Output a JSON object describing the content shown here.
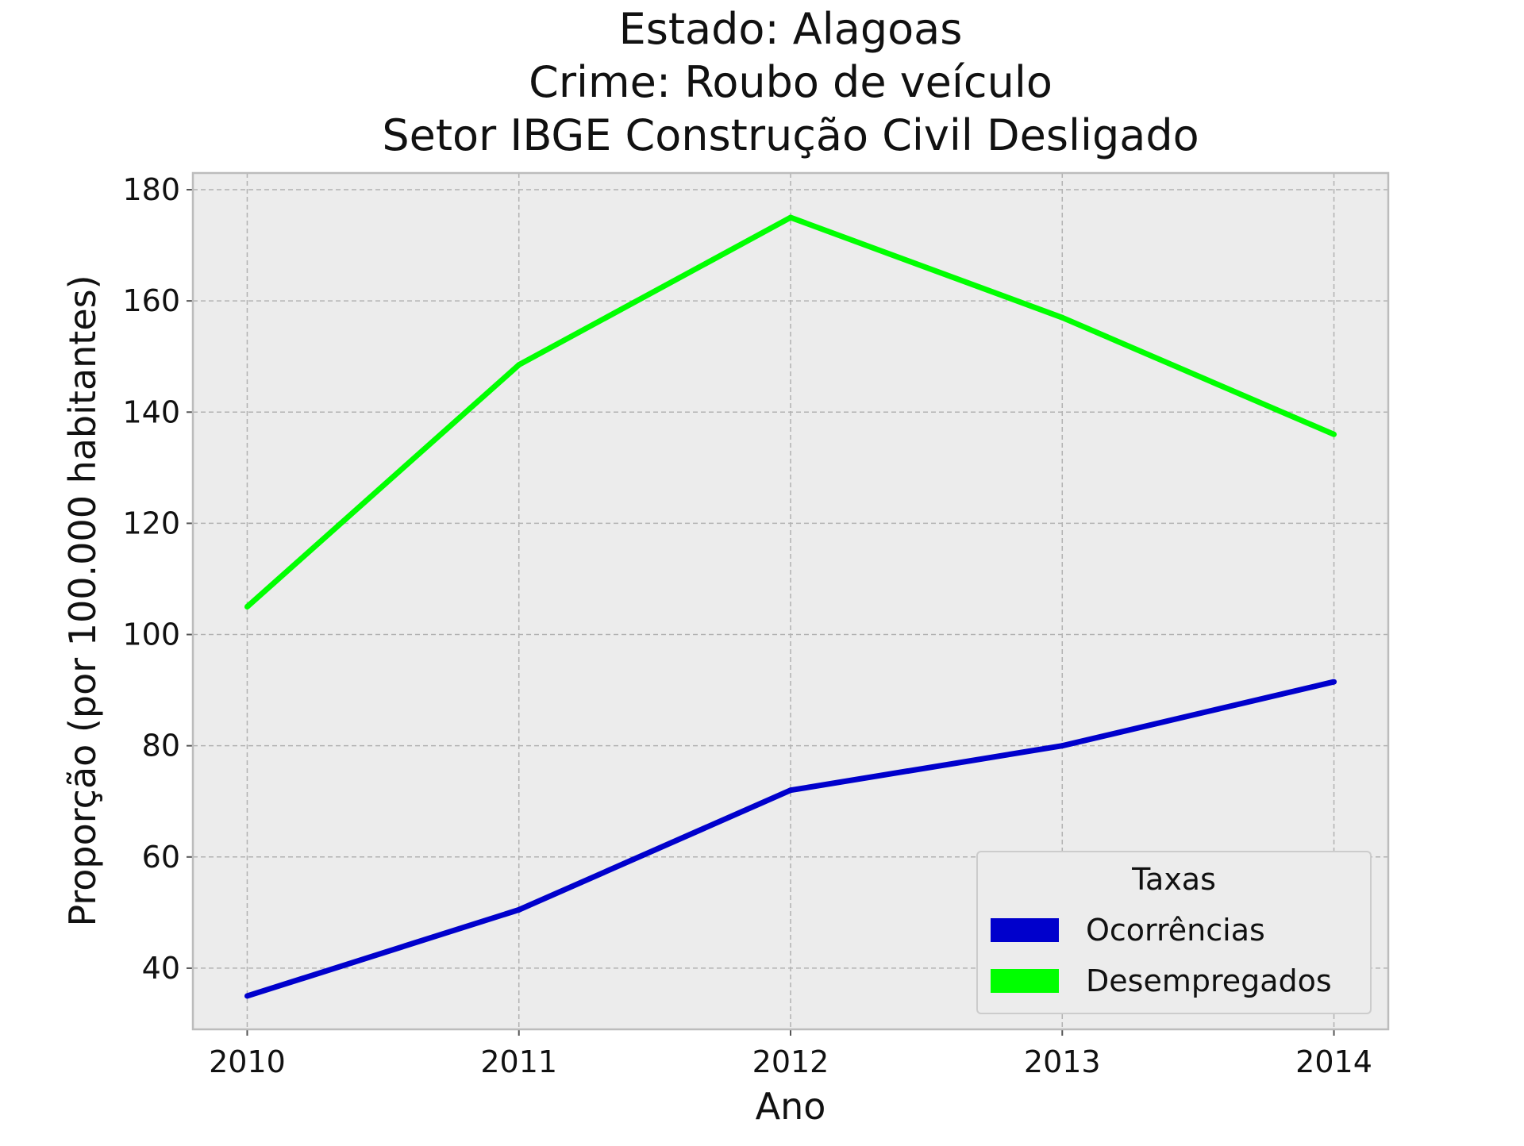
{
  "chart_data": {
    "type": "line",
    "title_lines": [
      "Estado: Alagoas",
      "Crime: Roubo de veículo",
      "Setor IBGE  Construção Civil   Desligado"
    ],
    "xlabel": "Ano",
    "ylabel": "Proporção (por 100.000 habitantes)",
    "x": [
      2010,
      2011,
      2012,
      2013,
      2014
    ],
    "x_tick_labels": [
      "2010",
      "2011",
      "2012",
      "2013",
      "2014"
    ],
    "y_ticks": [
      40,
      60,
      80,
      100,
      120,
      140,
      160,
      180
    ],
    "y_tick_labels": [
      "40",
      "60",
      "80",
      "100",
      "120",
      "140",
      "160",
      "180"
    ],
    "xlim": [
      2009.8,
      2014.2
    ],
    "ylim": [
      29,
      183
    ],
    "grid": true,
    "legend": {
      "title": "Taxas",
      "placement": "lower-right"
    },
    "series": [
      {
        "name": "Ocorrências",
        "color": "#0000cc",
        "values": [
          35,
          50.5,
          72,
          80,
          91.5
        ]
      },
      {
        "name": "Desempregados",
        "color": "#00ff00",
        "values": [
          105,
          148.5,
          175,
          157,
          136
        ]
      }
    ]
  }
}
